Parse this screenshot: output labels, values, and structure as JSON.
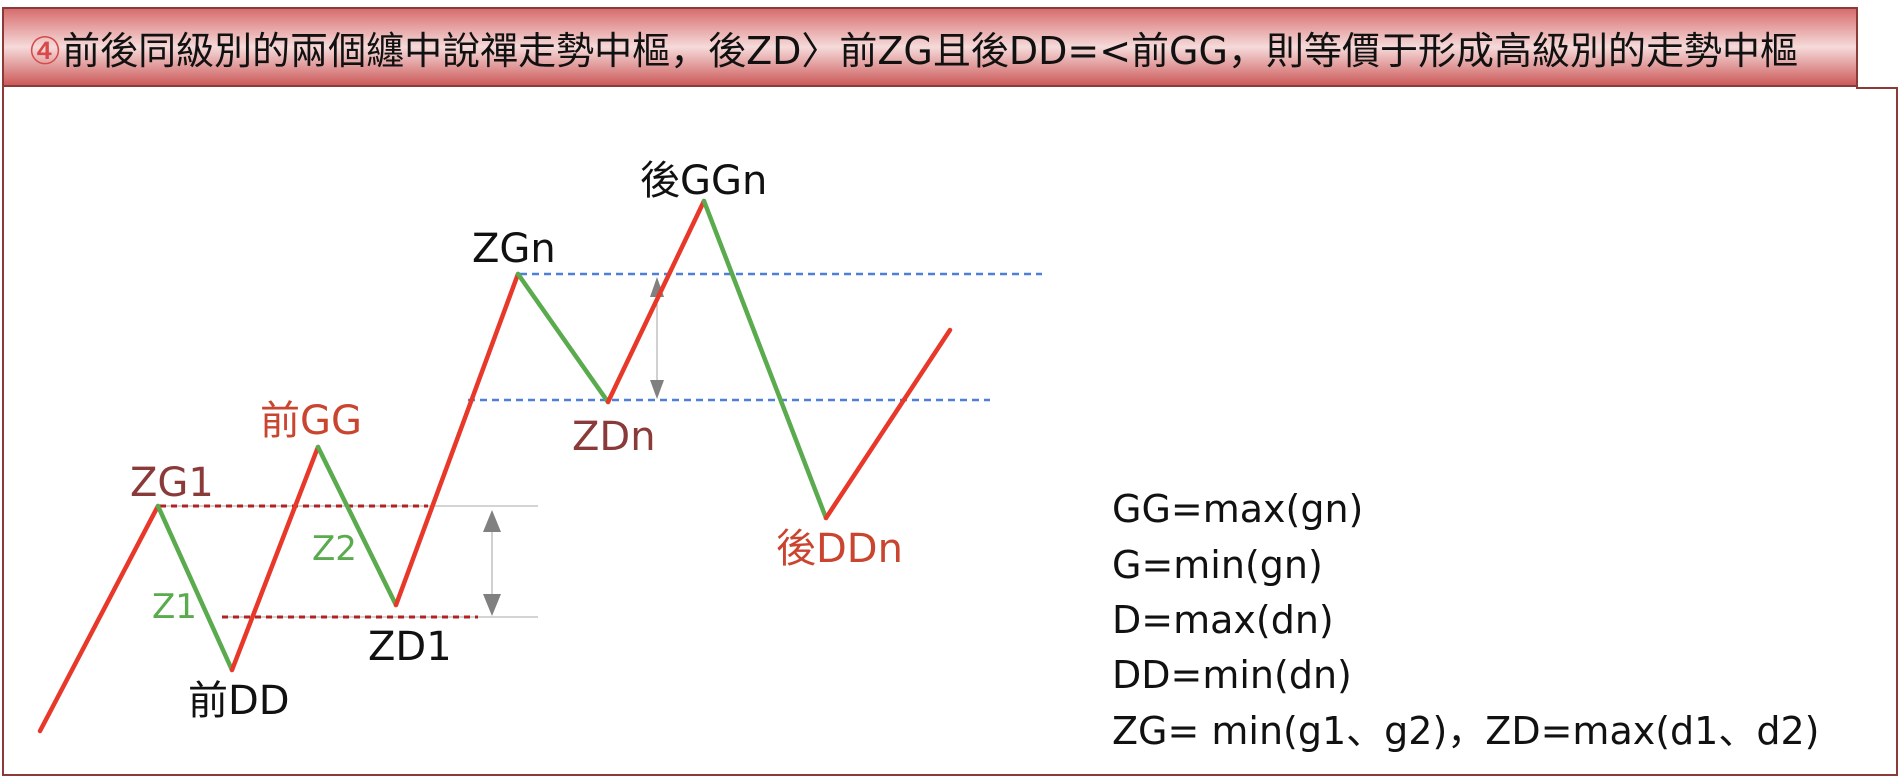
{
  "title": {
    "marker": "④",
    "text": "前後同級別的兩個纏中說禪走勢中樞，後ZD〉前ZG且後DD=<前GG，則等價于形成高級別的走勢中樞"
  },
  "labels": {
    "zg1": "ZG1",
    "qian_gg": "前GG",
    "z2": "Z2",
    "z1": "Z1",
    "qian_dd": "前DD",
    "zd1": "ZD1",
    "zgn": "ZGn",
    "hou_ggn": "後GGn",
    "zdn": "ZDn",
    "hou_ddn": "後DDn"
  },
  "formulas": [
    "GG=max(gn)",
    "G=min(gn)",
    "D=max(dn)",
    "DD=min(dn)",
    "ZG= min(g1、g2)，ZD=max(d1、d2)"
  ],
  "colors": {
    "up_stroke": "#e8382a",
    "down_stroke": "#5aaa4e",
    "zhongshu_line": "#b22222",
    "upper_zhongshu_line": "#4f7fd8",
    "title_border": "#8b3a3a",
    "label_dark_red": "#8b3a3a",
    "label_red": "#c9452f",
    "label_green": "#5aaa4e",
    "label_black": "#111111",
    "arrow": "#808080"
  },
  "icons": {
    "gap_arrow_lower": "double-headed-vertical-arrow",
    "gap_arrow_upper": "double-headed-vertical-arrow"
  }
}
